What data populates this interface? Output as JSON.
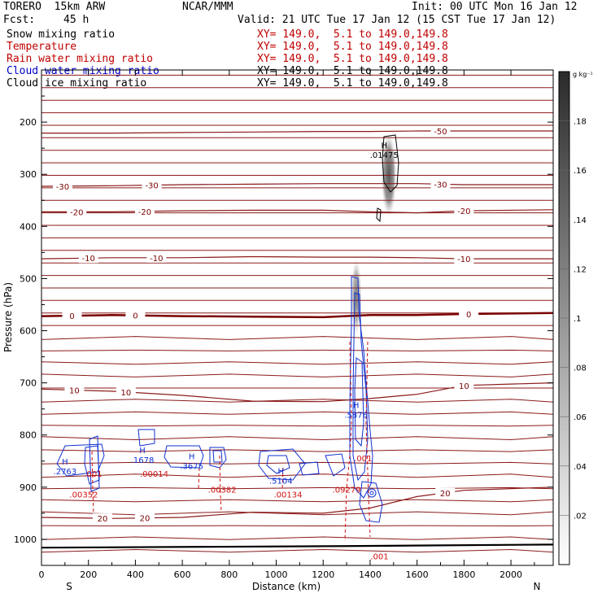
{
  "header": {
    "model": "TORERO  15km ARW",
    "center": "NCAR/MMM",
    "init": "Init: 00 UTC Mon 16 Jan 12",
    "fcst_label": "Fcst:",
    "fcst_value": "45 h",
    "valid": "Valid: 21 UTC Tue 17 Jan 12 (15 CST Tue 17 Jan 12)"
  },
  "legend": [
    {
      "label": "Snow mixing ratio",
      "xy": "XY= 149.0,  5.1 to 149.0,149.8",
      "color": "#000000"
    },
    {
      "label": "Temperature",
      "xy": "XY= 149.0,  5.1 to 149.0,149.8",
      "color": "#c00000"
    },
    {
      "label": "Rain water mixing ratio",
      "xy": "XY= 149.0,  5.1 to 149.0,149.8",
      "color": "#c00000"
    },
    {
      "label": "Cloud water mixing ratio",
      "xy": "XY= 149.0,  5.1 to 149.0,149.8",
      "color": "#0000c8"
    },
    {
      "label": "Cloud ice mixing ratio",
      "xy": "XY= 149.0,  5.1 to 149.0,149.8",
      "color": "#000000"
    }
  ],
  "chart_data": {
    "type": "line",
    "xlabel": "Distance (km)",
    "ylabel": "Pressure (hPa)",
    "xlim": [
      0,
      2180
    ],
    "ylim": [
      1050,
      100
    ],
    "x_ticks": [
      "0",
      "200",
      "400",
      "600",
      "800",
      "1000",
      "1200",
      "1400",
      "1600",
      "1800",
      "2000"
    ],
    "y_ticks": [
      "200",
      "300",
      "400",
      "500",
      "600",
      "700",
      "800",
      "900",
      "1000"
    ],
    "x_left_end_label": "S",
    "x_right_end_label": "N",
    "temperature_labels": [
      "-50",
      "-30",
      "-30",
      "-30",
      "-20",
      "-20",
      "-20",
      "-10",
      "-10",
      "-10",
      "0",
      "0",
      "0",
      "10",
      "10",
      "10",
      "20",
      "20",
      "20"
    ],
    "temperature_series": [
      {
        "name": "-50",
        "x": [
          0,
          300,
          600,
          900,
          1200,
          1400,
          1600,
          1800,
          2180
        ],
        "y": [
          221,
          221,
          220,
          219,
          218,
          218,
          217,
          217,
          217
        ]
      },
      {
        "name": "-30",
        "x": [
          0,
          300,
          600,
          900,
          1200,
          1400,
          1600,
          1800,
          2180
        ],
        "y": [
          323,
          322,
          320,
          319,
          318,
          318,
          318,
          320,
          320
        ]
      },
      {
        "name": "-20",
        "x": [
          0,
          300,
          600,
          900,
          1200,
          1400,
          1600,
          1800,
          2180
        ],
        "y": [
          372,
          372,
          370,
          369,
          369,
          372,
          374,
          370,
          368
        ]
      },
      {
        "name": "-10",
        "x": [
          0,
          300,
          600,
          900,
          1200,
          1400,
          1600,
          1800,
          2180
        ],
        "y": [
          462,
          460,
          460,
          458,
          459,
          459,
          460,
          462,
          462
        ]
      },
      {
        "name": "0",
        "x": [
          0,
          300,
          600,
          900,
          1200,
          1400,
          1600,
          1800,
          2180
        ],
        "y": [
          572,
          570,
          572,
          573,
          574,
          570,
          570,
          568,
          566
        ]
      },
      {
        "name": "10",
        "x": [
          0,
          300,
          600,
          900,
          1200,
          1400,
          1600,
          1800,
          2180
        ],
        "y": [
          712,
          716,
          724,
          735,
          736,
          730,
          722,
          705,
          700
        ]
      },
      {
        "name": "20",
        "x": [
          0,
          300,
          600,
          900,
          1200,
          1400,
          1600,
          1800,
          2180
        ],
        "y": [
          958,
          960,
          958,
          948,
          950,
          940,
          918,
          906,
          900
        ]
      }
    ],
    "cloud_max_labels": [
      {
        "marker": "H",
        "value": ".2763",
        "x": 100,
        "p": 872
      },
      {
        "marker": "H",
        "value": ".1678",
        "x": 430,
        "p": 850
      },
      {
        "marker": "H",
        "value": ".3675",
        "x": 640,
        "p": 862
      },
      {
        "marker": "H",
        "value": ".5104",
        "x": 1020,
        "p": 890
      },
      {
        "marker": "H",
        "value": ".5876",
        "x": 1340,
        "p": 764
      },
      {
        "marker": "H",
        "value": ".01475",
        "x": 1460,
        "p": 265
      }
    ],
    "rain_labels": [
      ".001",
      ".00352",
      ".00014",
      ".00382",
      ".00134",
      ".09279",
      ".001",
      ".001"
    ],
    "shade_scale": {
      "unit": "g kg⁻¹",
      "ticks": [
        ".02",
        ".04",
        ".06",
        ".08",
        ".1",
        ".12",
        ".14",
        ".16",
        ".18"
      ]
    }
  }
}
